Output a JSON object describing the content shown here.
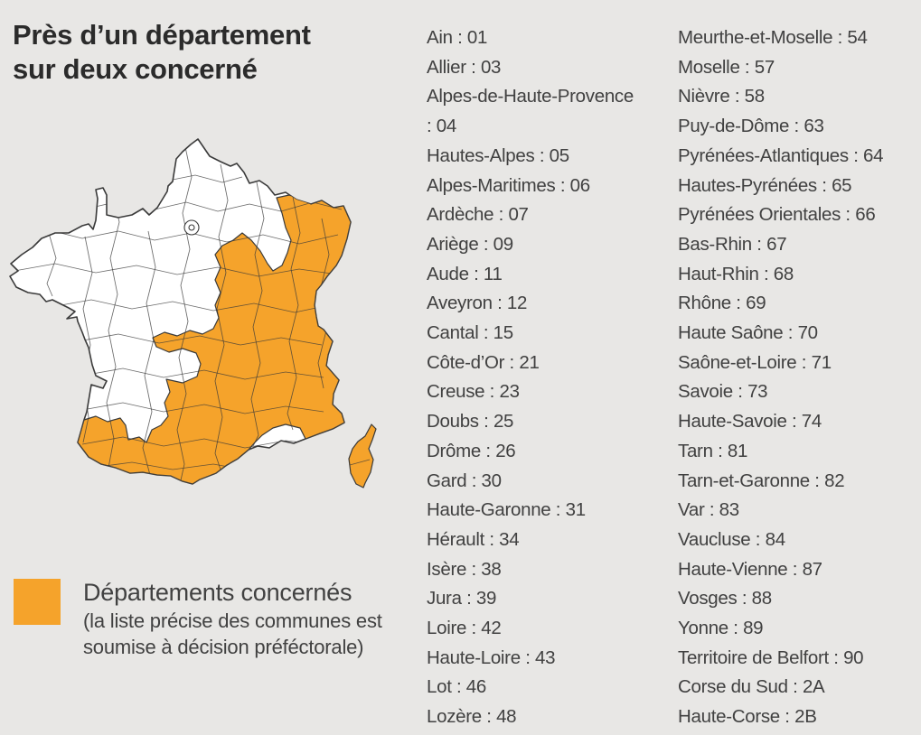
{
  "title": {
    "line1": "Près d’un département",
    "line2": "sur deux concerné"
  },
  "legend": {
    "label": "Départements concernés",
    "note_line1": "(la liste précise des communes est",
    "note_line2": "soumise à décision préféctorale)",
    "swatch_color": "#F5A32B"
  },
  "map": {
    "region_shown": "France métropolitaine et Corse",
    "highlight_meaning": "Départements concernés",
    "highlight_color": "#F5A32B",
    "default_fill": "#FFFFFF",
    "border_color": "#3A3A3A"
  },
  "columns": {
    "col1": [
      {
        "name": "Ain",
        "code": "01"
      },
      {
        "name": "Allier",
        "code": "03"
      },
      {
        "name": "Alpes-de-Haute-Provence",
        "code": "04"
      },
      {
        "name": "Hautes-Alpes",
        "code": "05"
      },
      {
        "name": "Alpes-Maritimes",
        "code": "06"
      },
      {
        "name": "Ardèche",
        "code": "07"
      },
      {
        "name": "Ariège",
        "code": "09"
      },
      {
        "name": "Aude",
        "code": "11"
      },
      {
        "name": "Aveyron",
        "code": "12"
      },
      {
        "name": "Cantal",
        "code": "15"
      },
      {
        "name": "Côte-d’Or",
        "code": "21"
      },
      {
        "name": "Creuse",
        "code": "23"
      },
      {
        "name": "Doubs",
        "code": "25"
      },
      {
        "name": "Drôme",
        "code": "26"
      },
      {
        "name": "Gard",
        "code": "30"
      },
      {
        "name": "Haute-Garonne",
        "code": "31"
      },
      {
        "name": "Hérault",
        "code": "34"
      },
      {
        "name": "Isère",
        "code": "38"
      },
      {
        "name": "Jura",
        "code": "39"
      },
      {
        "name": "Loire",
        "code": "42"
      },
      {
        "name": "Haute-Loire",
        "code": "43"
      },
      {
        "name": "Lot",
        "code": "46"
      },
      {
        "name": "Lozère",
        "code": "48"
      }
    ],
    "col2": [
      {
        "name": "Meurthe-et-Moselle",
        "code": "54"
      },
      {
        "name": "Moselle",
        "code": "57"
      },
      {
        "name": "Nièvre",
        "code": "58"
      },
      {
        "name": "Puy-de-Dôme",
        "code": "63"
      },
      {
        "name": "Pyrénées-Atlantiques",
        "code": "64"
      },
      {
        "name": "Hautes-Pyrénées",
        "code": "65"
      },
      {
        "name": "Pyrénées Orientales",
        "code": "66"
      },
      {
        "name": "Bas-Rhin",
        "code": "67"
      },
      {
        "name": "Haut-Rhin",
        "code": "68"
      },
      {
        "name": "Rhône",
        "code": "69"
      },
      {
        "name": "Haute Saône",
        "code": "70"
      },
      {
        "name": "Saône-et-Loire",
        "code": "71"
      },
      {
        "name": "Savoie",
        "code": "73"
      },
      {
        "name": "Haute-Savoie",
        "code": "74"
      },
      {
        "name": "Tarn",
        "code": "81"
      },
      {
        "name": "Tarn-et-Garonne",
        "code": "82"
      },
      {
        "name": "Var",
        "code": "83"
      },
      {
        "name": "Vaucluse",
        "code": "84"
      },
      {
        "name": "Haute-Vienne",
        "code": "87"
      },
      {
        "name": "Vosges",
        "code": "88"
      },
      {
        "name": "Yonne",
        "code": "89"
      },
      {
        "name": "Territoire de Belfort",
        "code": "90"
      },
      {
        "name": "Corse du Sud",
        "code": "2A"
      },
      {
        "name": "Haute-Corse",
        "code": "2B"
      }
    ]
  },
  "colors": {
    "background": "#E8E7E5",
    "title_text": "#2B2B2B",
    "body_text": "#414141",
    "highlight_orange": "#F5A32B",
    "map_border": "#3A3A3A"
  }
}
